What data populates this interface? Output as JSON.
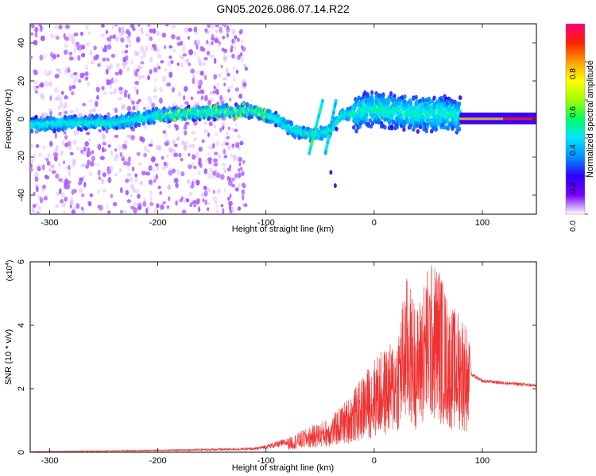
{
  "figure_title": "GN05.2026.086.07.14.R22",
  "chart_data": [
    {
      "type": "heatmap",
      "xlabel": "Height of straight line (km)",
      "ylabel": "Frequency (Hz)",
      "xlim": [
        -318,
        150
      ],
      "ylim": [
        -50,
        50
      ],
      "x_ticks": [
        -300,
        -200,
        -100,
        0,
        100
      ],
      "y_ticks": [
        -40,
        -20,
        0,
        20,
        40
      ],
      "colorbar": {
        "label": "Normalized spectral amplitude",
        "range": [
          0,
          1
        ],
        "ticks": [
          0.0,
          0.2,
          0.4,
          0.6,
          0.8
        ],
        "tick_labels": [
          "0.0",
          "0.2",
          "0.4",
          "0.6",
          "0.8"
        ],
        "colormap": [
          "#ffffff",
          "#7b00ff",
          "#2a00ff",
          "#0090ff",
          "#00e5ff",
          "#00ff66",
          "#a0ff00",
          "#ffff00",
          "#ffa000",
          "#ff2000",
          "#ff0080"
        ]
      },
      "track": {
        "height_km": [
          -318,
          -280,
          -240,
          -200,
          -170,
          -140,
          -110,
          -90,
          -75,
          -60,
          -50,
          -40,
          -30,
          -10,
          0,
          20,
          40,
          60,
          78,
          90,
          150
        ],
        "frequency_hz": [
          -3,
          -2,
          -2,
          2,
          3,
          4,
          4,
          0,
          -6,
          -8,
          -8,
          -6,
          2,
          4,
          5,
          4,
          3,
          3,
          2,
          0,
          0
        ]
      }
    },
    {
      "type": "line",
      "series_name": "SNR",
      "color": "#ee3333",
      "xlabel": "Height of straight line (km)",
      "ylabel": "SNR (10 * v/v)",
      "y_multiplier": "(x10^4)",
      "xlim": [
        -318,
        150
      ],
      "ylim": [
        0,
        6
      ],
      "x_ticks": [
        -300,
        -200,
        -100,
        0,
        100
      ],
      "y_ticks": [
        0,
        2,
        4,
        6
      ],
      "envelope": {
        "height_km": [
          -318,
          -200,
          -110,
          -80,
          -60,
          -40,
          -20,
          0,
          20,
          30,
          40,
          50,
          60,
          70,
          80,
          87,
          90,
          100,
          150
        ],
        "snr_max_x1e4": [
          0.02,
          0.08,
          0.15,
          0.45,
          0.8,
          1.1,
          1.9,
          3.0,
          3.6,
          5.6,
          4.6,
          6.0,
          6.0,
          4.6,
          4.5,
          4.0,
          2.5,
          2.3,
          2.15
        ]
      }
    }
  ]
}
